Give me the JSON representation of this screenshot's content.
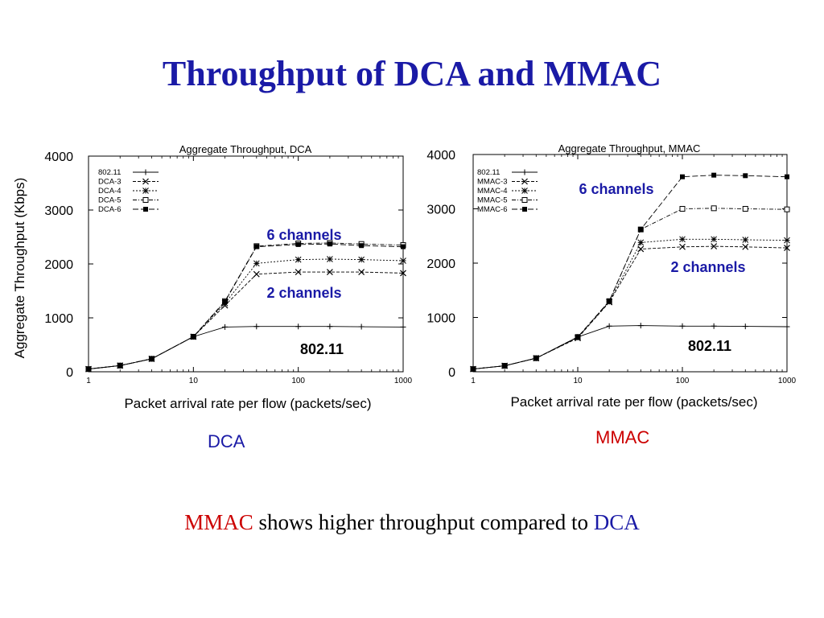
{
  "slide": {
    "title": "Throughput of DCA and MMAC",
    "captions": [
      "DCA",
      "MMAC"
    ],
    "conclusion": {
      "part1": "MMAC",
      "part2": " shows higher throughput compared to ",
      "part3": "DCA"
    },
    "colors": {
      "title": "#1a1aa6",
      "blue_text": "#1a1aa6",
      "red_text": "#cc0000",
      "plot_line": "#000000"
    }
  },
  "chart_data": [
    {
      "type": "line",
      "title": "Aggregate Throughput, DCA",
      "xlabel": "Packet arrival rate per flow (packets/sec)",
      "ylabel": "Aggregate Throughput (Kbps)",
      "xscale": "log",
      "xlim": [
        1,
        1000
      ],
      "ylim": [
        0,
        4000
      ],
      "xticks": [
        1,
        10,
        100,
        1000
      ],
      "yticks": [
        0,
        1000,
        2000,
        3000,
        4000
      ],
      "legend_position": "top-left",
      "x": [
        1,
        2,
        4,
        10,
        20,
        40,
        100,
        200,
        400,
        1000
      ],
      "series": [
        {
          "name": "802.11",
          "marker": "plus",
          "values": [
            50,
            115,
            240,
            650,
            830,
            840,
            840,
            840,
            835,
            830
          ]
        },
        {
          "name": "DCA-3",
          "marker": "x",
          "values": [
            50,
            115,
            240,
            650,
            1230,
            1810,
            1850,
            1850,
            1850,
            1830
          ]
        },
        {
          "name": "DCA-4",
          "marker": "star",
          "values": [
            50,
            115,
            240,
            650,
            1270,
            2010,
            2080,
            2090,
            2080,
            2060
          ]
        },
        {
          "name": "DCA-5",
          "marker": "open-square",
          "values": [
            50,
            115,
            240,
            650,
            1310,
            2330,
            2380,
            2390,
            2370,
            2350
          ]
        },
        {
          "name": "DCA-6",
          "marker": "filled-square",
          "values": [
            50,
            115,
            240,
            650,
            1300,
            2320,
            2360,
            2370,
            2340,
            2320
          ]
        }
      ],
      "annotations": [
        {
          "text": "6 channels",
          "color": "#1a1aa6"
        },
        {
          "text": "2 channels",
          "color": "#1a1aa6"
        },
        {
          "text": "802.11",
          "color": "#000000"
        }
      ]
    },
    {
      "type": "line",
      "title": "Aggregate Throughput, MMAC",
      "xlabel": "Packet arrival rate per flow (packets/sec)",
      "ylabel": "",
      "xscale": "log",
      "xlim": [
        1,
        1000
      ],
      "ylim": [
        0,
        4000
      ],
      "xticks": [
        1,
        10,
        100,
        1000
      ],
      "yticks": [
        0,
        1000,
        2000,
        3000,
        4000
      ],
      "legend_position": "top-left",
      "x": [
        1,
        2,
        4,
        10,
        20,
        40,
        100,
        200,
        400,
        1000
      ],
      "series": [
        {
          "name": "802.11",
          "marker": "plus",
          "values": [
            50,
            110,
            250,
            640,
            840,
            850,
            840,
            840,
            835,
            830
          ]
        },
        {
          "name": "MMAC-3",
          "marker": "x",
          "values": [
            50,
            110,
            250,
            620,
            1280,
            2260,
            2300,
            2310,
            2300,
            2280
          ]
        },
        {
          "name": "MMAC-4",
          "marker": "star",
          "values": [
            50,
            110,
            250,
            630,
            1290,
            2380,
            2440,
            2440,
            2430,
            2420
          ]
        },
        {
          "name": "MMAC-5",
          "marker": "open-square",
          "values": [
            50,
            110,
            250,
            640,
            1300,
            2620,
            3000,
            3010,
            3000,
            2990
          ]
        },
        {
          "name": "MMAC-6",
          "marker": "filled-square",
          "values": [
            50,
            110,
            250,
            640,
            1300,
            2620,
            3590,
            3620,
            3610,
            3590
          ]
        }
      ],
      "annotations": [
        {
          "text": "6 channels",
          "color": "#1a1aa6"
        },
        {
          "text": "2 channels",
          "color": "#1a1aa6"
        },
        {
          "text": "802.11",
          "color": "#000000"
        }
      ]
    }
  ]
}
